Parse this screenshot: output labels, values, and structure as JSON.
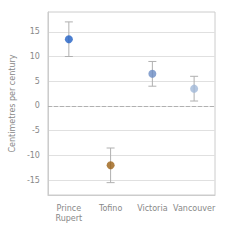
{
  "chart_data": {
    "type": "scatter",
    "ylabel": "Centimetres per century",
    "categories": [
      "Prince\nRupert",
      "Tofino",
      "Victoria",
      "Vancouver"
    ],
    "values": [
      13.5,
      -12.0,
      6.5,
      3.5
    ],
    "errors_low": [
      3.5,
      3.5,
      2.5,
      2.5
    ],
    "errors_high": [
      3.5,
      3.5,
      2.5,
      2.5
    ],
    "colors": [
      "#1f5fc4",
      "#9b6014",
      "#6b8cc4",
      "#a0b8d8"
    ],
    "error_color": "#b0b0b0",
    "ylim": [
      -18,
      19
    ],
    "yticks": [
      -15,
      -10,
      -5,
      0,
      5,
      10,
      15
    ],
    "grid": true,
    "hline": 0
  }
}
